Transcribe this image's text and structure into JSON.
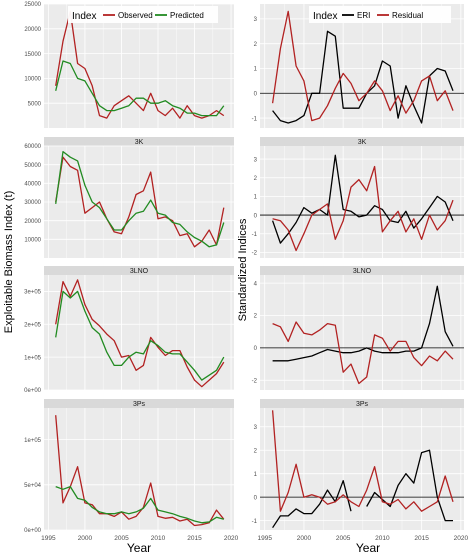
{
  "figure": {
    "left_ylabel": "Exploitable Biomass Index (t)",
    "right_ylabel": "Standardized Indices",
    "xlabel": "Year",
    "x_ticks": [
      "1995",
      "2000",
      "2005",
      "2010",
      "2015",
      "2020"
    ],
    "x_tick_values": [
      1995,
      2000,
      2005,
      2010,
      2015,
      2020
    ],
    "colors": {
      "panel_bg": "#ebebeb",
      "strip_bg": "#d9d9d9",
      "grid": "#ffffff",
      "red": "#b22222",
      "green": "#228b22",
      "black": "#000000",
      "axis_text": "#4d4d4d"
    }
  },
  "legend_left": {
    "title": "Index",
    "items": [
      {
        "label": "Observed",
        "color": "#b22222"
      },
      {
        "label": "Predicted",
        "color": "#228b22"
      }
    ]
  },
  "legend_right": {
    "title": "Index",
    "items": [
      {
        "label": "ERI",
        "color": "#000000"
      },
      {
        "label": "Residual",
        "color": "#b22222"
      }
    ]
  },
  "chart_data": [
    {
      "type": "line",
      "strip": "",
      "ylim": [
        0,
        25000
      ],
      "y_ticks": [
        5000,
        10000,
        15000,
        20000,
        25000
      ],
      "y_tick_labels": [
        "5000",
        "10000",
        "15000",
        "20000",
        "25000"
      ],
      "x": [
        1996,
        1997,
        1998,
        1999,
        2000,
        2001,
        2002,
        2003,
        2004,
        2005,
        2006,
        2007,
        2008,
        2009,
        2010,
        2011,
        2012,
        2013,
        2014,
        2015,
        2016,
        2017,
        2018,
        2019
      ],
      "series": [
        {
          "name": "Observed",
          "color": "#b22222",
          "values": [
            8500,
            17500,
            23500,
            13000,
            12000,
            8500,
            2500,
            2000,
            4500,
            5500,
            6500,
            5000,
            3500,
            7000,
            3500,
            2500,
            4000,
            2000,
            4500,
            2500,
            2000,
            2500,
            3500,
            2500
          ]
        },
        {
          "name": "Predicted",
          "color": "#228b22",
          "values": [
            7500,
            13500,
            13000,
            10000,
            9500,
            7000,
            4500,
            3500,
            3500,
            4000,
            4500,
            6000,
            6000,
            5000,
            5000,
            5500,
            4500,
            4000,
            3000,
            3000,
            2500,
            2500,
            2500,
            4500
          ]
        }
      ]
    },
    {
      "type": "line",
      "strip": "3K",
      "ylim": [
        0,
        60000
      ],
      "y_ticks": [
        10000,
        20000,
        30000,
        40000,
        50000,
        60000
      ],
      "y_tick_labels": [
        "10000",
        "20000",
        "30000",
        "40000",
        "50000",
        "60000"
      ],
      "x": [
        1996,
        1997,
        1998,
        1999,
        2000,
        2001,
        2002,
        2003,
        2004,
        2005,
        2006,
        2007,
        2008,
        2009,
        2010,
        2011,
        2012,
        2013,
        2014,
        2015,
        2016,
        2017,
        2018,
        2019
      ],
      "series": [
        {
          "name": "Observed",
          "color": "#b22222",
          "values": [
            30000,
            54000,
            49000,
            47000,
            24000,
            27000,
            30000,
            21000,
            14000,
            13000,
            22000,
            34000,
            36000,
            46000,
            21000,
            22000,
            20000,
            12000,
            13000,
            6000,
            9000,
            15000,
            7000,
            27000
          ]
        },
        {
          "name": "Predicted",
          "color": "#228b22",
          "values": [
            29000,
            57000,
            54000,
            52000,
            39000,
            30000,
            27000,
            21000,
            15000,
            15000,
            20000,
            24000,
            25000,
            31000,
            24000,
            23000,
            19000,
            18000,
            14000,
            11000,
            9000,
            6000,
            7000,
            19000
          ]
        }
      ]
    },
    {
      "type": "line",
      "strip": "3LNO",
      "ylim": [
        0,
        350000
      ],
      "y_ticks": [
        0,
        100000,
        200000,
        300000
      ],
      "y_tick_labels": [
        "0e+00",
        "1e+05",
        "2e+05",
        "3e+05"
      ],
      "x": [
        1996,
        1997,
        1998,
        1999,
        2000,
        2001,
        2002,
        2003,
        2004,
        2005,
        2006,
        2007,
        2008,
        2009,
        2010,
        2011,
        2012,
        2013,
        2014,
        2015,
        2016,
        2017,
        2018,
        2019
      ],
      "series": [
        {
          "name": "Observed",
          "color": "#b22222",
          "values": [
            200000,
            330000,
            285000,
            335000,
            260000,
            215000,
            195000,
            170000,
            150000,
            100000,
            105000,
            60000,
            75000,
            160000,
            130000,
            105000,
            120000,
            120000,
            70000,
            30000,
            10000,
            30000,
            50000,
            85000
          ]
        },
        {
          "name": "Predicted",
          "color": "#228b22",
          "values": [
            160000,
            300000,
            280000,
            300000,
            240000,
            190000,
            170000,
            115000,
            75000,
            75000,
            100000,
            115000,
            110000,
            150000,
            135000,
            115000,
            110000,
            110000,
            85000,
            60000,
            30000,
            45000,
            60000,
            100000
          ]
        }
      ]
    },
    {
      "type": "line",
      "strip": "3Ps",
      "ylim": [
        0,
        135000
      ],
      "y_ticks": [
        0,
        50000,
        100000
      ],
      "y_tick_labels": [
        "0e+00",
        "5e+04",
        "1e+05"
      ],
      "x": [
        1996,
        1997,
        1998,
        1999,
        2000,
        2001,
        2002,
        2003,
        2004,
        2005,
        2006,
        2007,
        2008,
        2009,
        2010,
        2011,
        2012,
        2013,
        2014,
        2015,
        2016,
        2017,
        2018,
        2019
      ],
      "series": [
        {
          "name": "Observed",
          "color": "#b22222",
          "values": [
            127000,
            30000,
            48000,
            70000,
            30000,
            28000,
            18000,
            18000,
            15000,
            20000,
            12000,
            15000,
            25000,
            52000,
            15000,
            13000,
            14000,
            10000,
            12000,
            5000,
            6000,
            8000,
            22000,
            12000
          ]
        },
        {
          "name": "Predicted",
          "color": "#228b22",
          "values": [
            48000,
            45000,
            48000,
            35000,
            33000,
            25000,
            20000,
            18000,
            18000,
            20000,
            18000,
            20000,
            24000,
            35000,
            22000,
            20000,
            18000,
            15000,
            13000,
            10000,
            8000,
            9000,
            14000,
            12000
          ]
        }
      ]
    },
    {
      "type": "line",
      "strip": "",
      "ylim": [
        -1.4,
        3.6
      ],
      "y_ticks": [
        -1,
        0,
        1,
        2,
        3
      ],
      "y_tick_labels": [
        "-1",
        "0",
        "1",
        "2",
        "3"
      ],
      "x": [
        1996,
        1997,
        1998,
        1999,
        2000,
        2001,
        2002,
        2003,
        2004,
        2005,
        2006,
        2007,
        2008,
        2009,
        2010,
        2011,
        2012,
        2013,
        2014,
        2015,
        2016,
        2017,
        2018,
        2019
      ],
      "series": [
        {
          "name": "ERI",
          "color": "#000000",
          "values": [
            -0.7,
            -1.1,
            -1.2,
            -1.1,
            -0.9,
            0.0,
            0.0,
            2.5,
            2.3,
            -0.6,
            -0.6,
            -0.6,
            0.0,
            0.3,
            1.3,
            1.1,
            -1.0,
            0.3,
            -0.5,
            -1.2,
            0.7,
            1.0,
            0.9,
            0.1
          ]
        },
        {
          "name": "Residual",
          "color": "#b22222",
          "values": [
            -0.4,
            1.8,
            3.3,
            1.1,
            0.5,
            -1.1,
            -1.0,
            -0.5,
            0.2,
            0.8,
            0.4,
            -0.3,
            0.0,
            0.5,
            0.1,
            -0.7,
            -0.1,
            -0.8,
            -0.3,
            0.5,
            0.7,
            -0.3,
            0.1,
            -0.7
          ]
        }
      ]
    },
    {
      "type": "line",
      "strip": "3K",
      "ylim": [
        -2.3,
        3.7
      ],
      "y_ticks": [
        -2,
        -1,
        0,
        1,
        2,
        3
      ],
      "y_tick_labels": [
        "-2",
        "-1",
        "0",
        "1",
        "2",
        "3"
      ],
      "x": [
        1996,
        1997,
        1998,
        1999,
        2000,
        2001,
        2002,
        2003,
        2004,
        2005,
        2006,
        2007,
        2008,
        2009,
        2010,
        2011,
        2012,
        2013,
        2014,
        2015,
        2016,
        2017,
        2018,
        2019
      ],
      "series": [
        {
          "name": "ERI",
          "color": "#000000",
          "values": [
            -0.3,
            -1.5,
            -1.0,
            -0.4,
            0.4,
            0.1,
            0.3,
            0.0,
            3.2,
            0.3,
            0.2,
            -0.1,
            0.0,
            0.5,
            0.3,
            -0.3,
            -0.4,
            0.2,
            -0.7,
            -0.2,
            0.4,
            1.0,
            0.7,
            -0.3
          ]
        },
        {
          "name": "Residual",
          "color": "#b22222",
          "values": [
            -0.2,
            -0.3,
            -0.8,
            -1.9,
            -1.0,
            0.0,
            0.3,
            0.6,
            -1.3,
            -0.3,
            1.5,
            1.9,
            1.3,
            2.6,
            -0.9,
            -0.3,
            0.2,
            -0.9,
            -0.2,
            -1.3,
            0.0,
            -0.8,
            -0.3,
            0.8
          ]
        }
      ]
    },
    {
      "type": "line",
      "strip": "3LNO",
      "ylim": [
        -2.6,
        4.5
      ],
      "y_ticks": [
        -2,
        0,
        2,
        4
      ],
      "y_tick_labels": [
        "-2",
        "0",
        "2",
        "4"
      ],
      "x": [
        1996,
        1997,
        1998,
        1999,
        2000,
        2001,
        2002,
        2003,
        2004,
        2005,
        2006,
        2007,
        2008,
        2009,
        2010,
        2011,
        2012,
        2013,
        2014,
        2015,
        2016,
        2017,
        2018,
        2019
      ],
      "series": [
        {
          "name": "ERI",
          "color": "#000000",
          "values": [
            -0.8,
            -0.8,
            -0.8,
            -0.7,
            -0.6,
            -0.5,
            -0.3,
            -0.1,
            -0.2,
            -0.3,
            -0.3,
            -0.2,
            0.0,
            -0.2,
            -0.3,
            -0.3,
            -0.3,
            -0.2,
            -0.2,
            0.0,
            1.5,
            3.8,
            1.0,
            0.1
          ]
        },
        {
          "name": "Residual",
          "color": "#b22222",
          "values": [
            1.5,
            1.3,
            0.4,
            1.6,
            0.9,
            0.8,
            1.1,
            1.5,
            1.4,
            -1.5,
            -1.0,
            -2.2,
            -1.8,
            0.8,
            0.6,
            -0.2,
            0.4,
            0.4,
            -0.6,
            -1.1,
            -0.5,
            -0.8,
            -0.2,
            -0.7
          ]
        }
      ]
    },
    {
      "type": "line",
      "strip": "3Ps",
      "ylim": [
        -1.4,
        3.8
      ],
      "y_ticks": [
        -1,
        0,
        1,
        2,
        3
      ],
      "y_tick_labels": [
        "-1",
        "0",
        "1",
        "2",
        "3"
      ],
      "x": [
        1996,
        1997,
        1998,
        1999,
        2000,
        2001,
        2002,
        2003,
        2004,
        2005,
        2006,
        2007,
        2008,
        2009,
        2010,
        2011,
        2012,
        2013,
        2014,
        2015,
        2016,
        2017,
        2018,
        2019
      ],
      "series": [
        {
          "name": "ERI",
          "color": "#000000",
          "values": [
            -1.3,
            -0.8,
            -0.8,
            -0.5,
            -0.7,
            -0.7,
            -0.3,
            0.3,
            -0.2,
            0.7,
            -0.6,
            null,
            -0.4,
            0.2,
            -0.1,
            -0.4,
            0.5,
            1.0,
            0.6,
            1.9,
            2.0,
            0.0,
            -1.0,
            -1.0
          ]
        },
        {
          "name": "Residual",
          "color": "#b22222",
          "values": [
            3.7,
            -0.6,
            0.2,
            1.4,
            0.0,
            0.1,
            0.0,
            -0.3,
            -0.2,
            0.1,
            -0.2,
            -0.4,
            0.3,
            1.3,
            -0.2,
            -0.3,
            -0.1,
            -0.5,
            -0.2,
            -0.6,
            -0.4,
            -0.2,
            0.9,
            -0.2
          ]
        }
      ]
    }
  ]
}
